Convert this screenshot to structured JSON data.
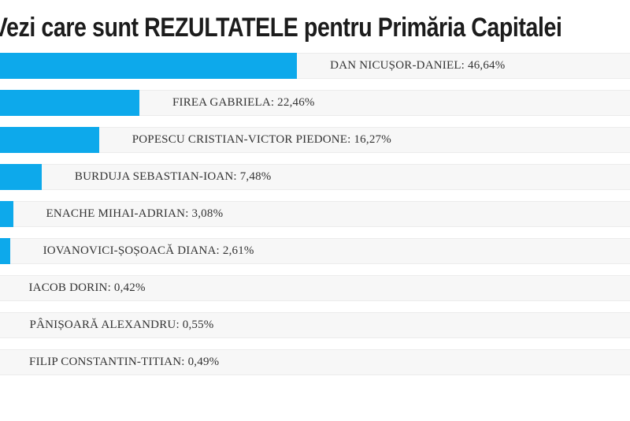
{
  "title": "Vezi care sunt REZULTATELE pentru Primăria Capitalei",
  "colors": {
    "bar": "#0da9eb",
    "row_background": "#f7f7f7",
    "row_border": "#ececec",
    "label_text": "#333333",
    "title_text": "#1c1c1c"
  },
  "chart_data": {
    "type": "bar",
    "orientation": "horizontal",
    "title": "Vezi care sunt REZULTATELE pentru Primăria Capitalei",
    "categories": [
      "DAN NICUȘOR-DANIEL",
      "FIREA GABRIELA",
      "POPESCU CRISTIAN-VICTOR PIEDONE",
      "BURDUJA SEBASTIAN-IOAN",
      "ENACHE MIHAI-ADRIAN",
      "IOVANOVICI-ȘOȘOACĂ DIANA",
      "IACOB DORIN",
      "PÂNIȘOARĂ ALEXANDRU",
      "FILIP CONSTANTIN-TITIAN"
    ],
    "values": [
      46.64,
      22.46,
      16.27,
      7.48,
      3.08,
      2.61,
      0.42,
      0.55,
      0.49
    ],
    "labels": [
      "DAN NICUȘOR-DANIEL: 46,64%",
      "FIREA GABRIELA: 22,46%",
      "POPESCU CRISTIAN-VICTOR PIEDONE: 16,27%",
      "BURDUJA SEBASTIAN-IOAN: 7,48%",
      "ENACHE MIHAI-ADRIAN: 3,08%",
      "IOVANOVICI-ȘOȘOACĂ DIANA: 2,61%",
      "IACOB DORIN: 0,42%",
      "PÂNIȘOARĂ ALEXANDRU: 0,55%",
      "FILIP CONSTANTIN-TITIAN: 0,49%"
    ],
    "value_format": "percent-comma-decimal",
    "xlim": [
      0,
      100
    ],
    "grid": false,
    "legend": false
  }
}
